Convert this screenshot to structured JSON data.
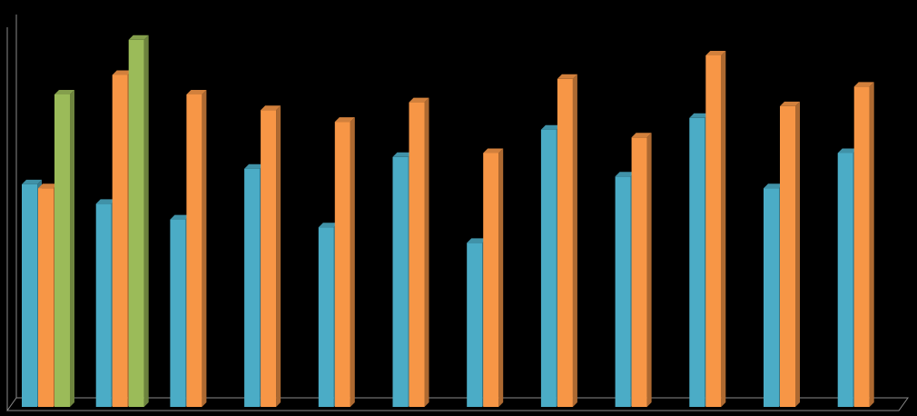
{
  "chart_data": {
    "type": "bar",
    "categories": [
      null,
      null,
      null,
      null,
      null,
      null,
      null,
      null,
      null,
      null,
      null,
      null
    ],
    "series": [
      {
        "color": "#4bacc6",
        "values": [
          57,
          52,
          48,
          61,
          46,
          64,
          42,
          71,
          59,
          74,
          56,
          65
        ]
      },
      {
        "color": "#f79646",
        "values": [
          56,
          85,
          80,
          76,
          73,
          78,
          65,
          84,
          69,
          90,
          77,
          82
        ]
      },
      {
        "color": "#9bbb59",
        "values": [
          80,
          94,
          null,
          null,
          null,
          null,
          null,
          null,
          null,
          null,
          null,
          null
        ]
      }
    ],
    "ylim": [
      0,
      100
    ]
  }
}
